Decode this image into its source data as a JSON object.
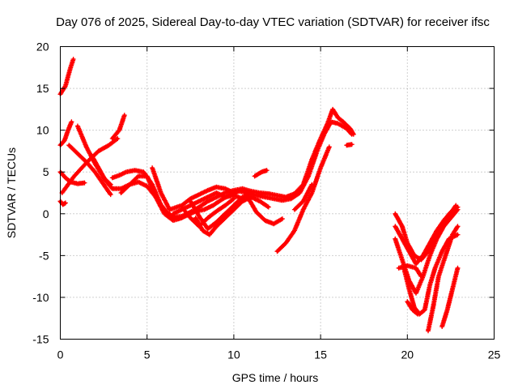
{
  "chart_data": {
    "type": "scatter",
    "title": "Day 076 of 2025, Sidereal Day-to-day VTEC variation (SDTVAR) for receiver ifsc",
    "xlabel": "GPS time / hours",
    "ylabel": "SDTVAR / TECUs",
    "xlim": [
      0,
      25
    ],
    "ylim": [
      -15,
      20
    ],
    "xticks": [
      "0",
      "5",
      "10",
      "15",
      "20",
      "25"
    ],
    "yticks": [
      "-15",
      "-10",
      "-5",
      "0",
      "5",
      "10",
      "15",
      "20"
    ],
    "xtick_values": [
      0,
      5,
      10,
      15,
      20,
      25
    ],
    "ytick_values": [
      -15,
      -10,
      -5,
      0,
      5,
      10,
      15,
      20
    ],
    "grid": true,
    "marker": "plus",
    "color": "#ff0000",
    "series": [
      {
        "points": [
          [
            0.0,
            14.3
          ],
          [
            0.3,
            15.3
          ],
          [
            0.55,
            17.2
          ],
          [
            0.75,
            18.5
          ]
        ]
      },
      {
        "points": [
          [
            0.0,
            8.2
          ],
          [
            0.25,
            8.8
          ],
          [
            0.45,
            10.0
          ],
          [
            0.65,
            11.0
          ]
        ]
      },
      {
        "points": [
          [
            0.0,
            1.5
          ],
          [
            0.15,
            1.1
          ],
          [
            0.3,
            1.3
          ]
        ]
      },
      {
        "points": [
          [
            0.0,
            5.0
          ],
          [
            0.3,
            4.3
          ],
          [
            0.6,
            3.8
          ],
          [
            1.0,
            3.6
          ],
          [
            1.4,
            3.7
          ]
        ]
      },
      {
        "points": [
          [
            0.1,
            2.5
          ],
          [
            0.8,
            4.5
          ],
          [
            1.6,
            6.3
          ],
          [
            2.2,
            7.5
          ],
          [
            2.8,
            8.2
          ],
          [
            3.3,
            9.0
          ]
        ]
      },
      {
        "points": [
          [
            0.5,
            8.2
          ],
          [
            1.0,
            7.2
          ],
          [
            1.5,
            6.2
          ],
          [
            2.0,
            5.0
          ],
          [
            2.5,
            3.5
          ],
          [
            2.9,
            2.3
          ]
        ]
      },
      {
        "points": [
          [
            1.0,
            10.5
          ],
          [
            1.5,
            8.0
          ],
          [
            2.0,
            6.0
          ],
          [
            2.5,
            4.3
          ],
          [
            2.9,
            3.5
          ]
        ]
      },
      {
        "points": [
          [
            1.8,
            7.0
          ],
          [
            2.2,
            5.5
          ],
          [
            2.6,
            4.0
          ],
          [
            3.0,
            3.0
          ],
          [
            3.5,
            3.0
          ],
          [
            4.0,
            3.5
          ],
          [
            4.5,
            3.8
          ],
          [
            5.0,
            3.3
          ],
          [
            5.5,
            2.0
          ],
          [
            6.0,
            0.5
          ],
          [
            6.5,
            -0.4
          ],
          [
            7.0,
            -0.3
          ],
          [
            7.5,
            0.2
          ]
        ]
      },
      {
        "points": [
          [
            3.0,
            9.0
          ],
          [
            3.4,
            10.0
          ],
          [
            3.7,
            11.8
          ]
        ]
      },
      {
        "points": [
          [
            3.0,
            4.3
          ],
          [
            3.4,
            4.6
          ],
          [
            3.8,
            5.0
          ],
          [
            4.3,
            5.2
          ],
          [
            4.8,
            5.0
          ],
          [
            5.3,
            3.5
          ],
          [
            5.8,
            1.0
          ],
          [
            6.3,
            -0.2
          ],
          [
            6.8,
            -0.6
          ],
          [
            7.3,
            -0.2
          ],
          [
            7.8,
            0.3
          ],
          [
            8.3,
            0.5
          ],
          [
            8.8,
            1.0
          ],
          [
            9.3,
            1.7
          ],
          [
            9.8,
            2.3
          ],
          [
            10.3,
            2.7
          ],
          [
            10.8,
            2.5
          ],
          [
            11.3,
            2.2
          ],
          [
            11.8,
            2.0
          ],
          [
            12.3,
            1.8
          ],
          [
            12.8,
            1.6
          ],
          [
            13.3,
            1.8
          ],
          [
            13.8,
            2.5
          ],
          [
            14.3,
            4.5
          ],
          [
            14.8,
            7.5
          ],
          [
            15.2,
            9.5
          ],
          [
            15.6,
            11.0
          ],
          [
            16.0,
            10.8
          ],
          [
            16.5,
            10.2
          ],
          [
            16.8,
            9.5
          ]
        ]
      },
      {
        "points": [
          [
            3.5,
            2.5
          ],
          [
            4.0,
            3.5
          ],
          [
            4.5,
            4.5
          ],
          [
            5.0,
            4.5
          ],
          [
            5.5,
            2.0
          ],
          [
            6.0,
            0.0
          ],
          [
            6.5,
            -0.8
          ],
          [
            7.0,
            -0.5
          ],
          [
            7.5,
            0.2
          ],
          [
            8.0,
            0.8
          ],
          [
            8.5,
            1.5
          ],
          [
            9.0,
            2.0
          ],
          [
            9.5,
            2.5
          ],
          [
            10.0,
            2.8
          ],
          [
            10.5,
            3.0
          ],
          [
            11.0,
            2.7
          ],
          [
            11.5,
            2.5
          ],
          [
            12.0,
            2.4
          ],
          [
            12.5,
            2.2
          ],
          [
            13.0,
            2.0
          ],
          [
            13.5,
            2.4
          ],
          [
            14.0,
            3.5
          ],
          [
            14.5,
            6.5
          ],
          [
            15.0,
            9.0
          ],
          [
            15.4,
            10.8
          ],
          [
            15.7,
            12.5
          ],
          [
            16.0,
            11.5
          ],
          [
            16.3,
            11.0
          ],
          [
            16.7,
            10.2
          ],
          [
            16.9,
            9.5
          ]
        ]
      },
      {
        "points": [
          [
            16.5,
            8.2
          ],
          [
            16.8,
            8.3
          ]
        ]
      },
      {
        "points": [
          [
            5.3,
            5.5
          ],
          [
            5.8,
            2.5
          ],
          [
            6.3,
            0.5
          ],
          [
            7.0,
            1.0
          ],
          [
            7.5,
            1.8
          ],
          [
            8.0,
            2.3
          ],
          [
            8.5,
            2.8
          ],
          [
            9.0,
            3.2
          ],
          [
            9.5,
            3.0
          ],
          [
            10.0,
            2.5
          ]
        ]
      },
      {
        "points": [
          [
            6.5,
            0.0
          ],
          [
            7.0,
            0.5
          ],
          [
            7.5,
            1.0
          ],
          [
            8.0,
            1.5
          ],
          [
            8.5,
            2.0
          ],
          [
            9.0,
            2.5
          ],
          [
            9.5,
            2.0
          ],
          [
            10.0,
            2.2
          ],
          [
            10.5,
            1.8
          ],
          [
            11.0,
            2.0
          ]
        ]
      },
      {
        "points": [
          [
            7.0,
            0.8
          ],
          [
            7.5,
            -0.5
          ],
          [
            8.0,
            -1.5
          ],
          [
            8.5,
            -0.5
          ],
          [
            9.0,
            0.3
          ],
          [
            9.5,
            1.0
          ],
          [
            10.0,
            1.8
          ]
        ]
      },
      {
        "points": [
          [
            7.5,
            1.5
          ],
          [
            8.0,
            -0.3
          ],
          [
            8.5,
            -1.8
          ],
          [
            9.0,
            -1.0
          ],
          [
            9.5,
            0.0
          ],
          [
            10.0,
            1.0
          ],
          [
            10.5,
            2.0
          ],
          [
            11.0,
            2.5
          ]
        ]
      },
      {
        "points": [
          [
            7.8,
            -0.5
          ],
          [
            8.2,
            -2.0
          ],
          [
            8.6,
            -2.5
          ],
          [
            9.0,
            -1.5
          ],
          [
            9.5,
            -0.5
          ],
          [
            10.0,
            0.5
          ],
          [
            10.5,
            1.5
          ],
          [
            11.0,
            2.0
          ],
          [
            11.5,
            1.5
          ],
          [
            12.0,
            0.8
          ]
        ]
      },
      {
        "points": [
          [
            10.8,
            2.0
          ],
          [
            11.3,
            0.2
          ],
          [
            11.8,
            -0.8
          ],
          [
            12.3,
            -1.2
          ],
          [
            12.8,
            -0.6
          ]
        ]
      },
      {
        "points": [
          [
            11.2,
            4.5
          ],
          [
            11.6,
            5.0
          ],
          [
            11.9,
            5.2
          ]
        ]
      },
      {
        "points": [
          [
            12.5,
            -4.5
          ],
          [
            13.0,
            -3.5
          ],
          [
            13.5,
            -2.0
          ],
          [
            14.0,
            0.5
          ],
          [
            14.5,
            2.5
          ],
          [
            15.0,
            5.5
          ],
          [
            15.5,
            8.0
          ]
        ]
      },
      {
        "points": [
          [
            13.5,
            0.5
          ],
          [
            14.0,
            1.5
          ],
          [
            14.5,
            3.5
          ]
        ]
      },
      {
        "points": [
          [
            19.3,
            0.0
          ],
          [
            19.7,
            -1.5
          ],
          [
            20.0,
            -3.5
          ],
          [
            20.4,
            -5.0
          ],
          [
            20.8,
            -5.5
          ],
          [
            21.2,
            -4.5
          ],
          [
            21.6,
            -3.0
          ],
          [
            22.0,
            -1.5
          ],
          [
            22.4,
            -0.2
          ],
          [
            22.8,
            1.0
          ]
        ]
      },
      {
        "points": [
          [
            19.3,
            -1.5
          ],
          [
            19.7,
            -3.0
          ],
          [
            20.1,
            -4.5
          ],
          [
            20.5,
            -6.0
          ],
          [
            20.9,
            -5.0
          ],
          [
            21.3,
            -3.5
          ],
          [
            21.7,
            -2.0
          ],
          [
            22.1,
            -0.8
          ],
          [
            22.5,
            0.2
          ],
          [
            22.9,
            0.8
          ]
        ]
      },
      {
        "points": [
          [
            19.3,
            -3.0
          ],
          [
            19.7,
            -5.5
          ],
          [
            20.1,
            -8.0
          ],
          [
            20.5,
            -9.5
          ],
          [
            20.9,
            -7.5
          ],
          [
            21.3,
            -5.0
          ],
          [
            21.7,
            -3.0
          ],
          [
            22.1,
            -1.5
          ],
          [
            22.5,
            -0.5
          ],
          [
            22.9,
            0.5
          ]
        ]
      },
      {
        "points": [
          [
            19.5,
            -6.5
          ],
          [
            20.0,
            -6.2
          ],
          [
            20.5,
            -6.5
          ],
          [
            20.8,
            -7.5
          ]
        ]
      },
      {
        "points": [
          [
            19.8,
            -6.5
          ],
          [
            20.1,
            -9.0
          ],
          [
            20.4,
            -11.2
          ],
          [
            20.7,
            -12.0
          ],
          [
            21.0,
            -11.5
          ],
          [
            21.3,
            -8.5
          ],
          [
            21.6,
            -6.5
          ],
          [
            22.0,
            -4.5
          ],
          [
            22.4,
            -3.0
          ],
          [
            22.9,
            -2.5
          ]
        ]
      },
      {
        "points": [
          [
            20.0,
            -10.5
          ],
          [
            20.3,
            -11.5
          ],
          [
            20.6,
            -12.0
          ]
        ]
      },
      {
        "points": [
          [
            21.2,
            -14.0
          ],
          [
            21.5,
            -11.0
          ],
          [
            21.8,
            -7.5
          ],
          [
            22.2,
            -5.0
          ],
          [
            22.6,
            -2.5
          ],
          [
            22.9,
            -1.5
          ]
        ]
      },
      {
        "points": [
          [
            22.0,
            -13.5
          ],
          [
            22.3,
            -11.5
          ],
          [
            22.6,
            -9.0
          ],
          [
            22.9,
            -6.5
          ]
        ]
      }
    ]
  }
}
